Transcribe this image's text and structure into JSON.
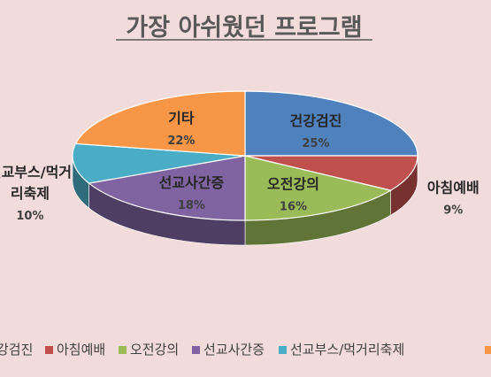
{
  "chart_data": {
    "type": "pie",
    "title": "가장 아쉬웠던 프로그램",
    "categories": [
      "건강검진",
      "아침예배",
      "오전강의",
      "선교사간증",
      "선교부스/먹거리축제",
      "기타"
    ],
    "values": [
      25,
      9,
      16,
      18,
      10,
      22
    ],
    "percent_labels": [
      "25%",
      "9%",
      "16%",
      "18%",
      "10%",
      "22%"
    ],
    "colors": [
      "#4f81bd",
      "#c0504d",
      "#9bbb59",
      "#8064a2",
      "#4bacc6",
      "#f79646"
    ],
    "slice_label_lines": [
      [
        "건강검진"
      ],
      [
        "아침예배"
      ],
      [
        "오전강의"
      ],
      [
        "선교사간증"
      ],
      [
        "선교부스/먹거",
        "리축제"
      ],
      [
        "기타"
      ]
    ],
    "legend_visible_labels": [
      "강검진",
      "아침예배",
      "오전강의",
      "선교사간증",
      "선교부스/먹거리축제"
    ],
    "legend_position": "bottom"
  }
}
